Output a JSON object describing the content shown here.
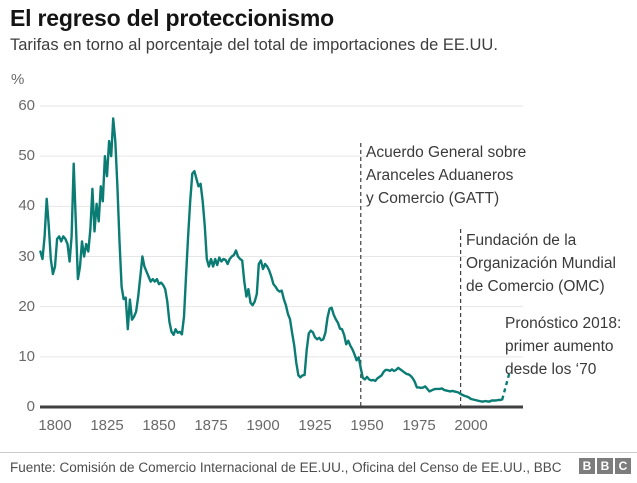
{
  "header": {
    "title": "El regreso del proteccionismo",
    "subtitle": "Tarifas en torno al porcentaje del total de importaciones de EE.UU."
  },
  "chart_data": {
    "type": "line",
    "title": "El regreso del proteccionismo",
    "subtitle": "Tarifas en torno al porcentaje del total de importaciones de EE.UU.",
    "unit_label": "%",
    "ylabel": "%",
    "xlabel": "",
    "ylim": [
      0,
      60
    ],
    "xlim": [
      1790,
      2022
    ],
    "grid": true,
    "legend": "none",
    "y_ticks": [
      0,
      10,
      20,
      30,
      40,
      50,
      60
    ],
    "x_ticks": [
      1800,
      1825,
      1850,
      1875,
      1900,
      1925,
      1950,
      1975,
      2000
    ],
    "colors": {
      "line": "#0b7c74",
      "grid": "#e6e6e6",
      "axis": "#404040",
      "annotation_line": "#404040"
    },
    "series": [
      {
        "name": "Tarifas como % del total de importaciones de EE.UU.",
        "points": [
          [
            1793,
            31
          ],
          [
            1794,
            29.5
          ],
          [
            1795,
            34
          ],
          [
            1796,
            41.5
          ],
          [
            1797,
            36
          ],
          [
            1798,
            29.5
          ],
          [
            1799,
            26.5
          ],
          [
            1800,
            28
          ],
          [
            1801,
            33.5
          ],
          [
            1802,
            34
          ],
          [
            1803,
            33
          ],
          [
            1804,
            34
          ],
          [
            1805,
            33.5
          ],
          [
            1806,
            32.5
          ],
          [
            1807,
            29
          ],
          [
            1808,
            34
          ],
          [
            1809,
            48.5
          ],
          [
            1810,
            37
          ],
          [
            1811,
            25.5
          ],
          [
            1812,
            28
          ],
          [
            1813,
            33
          ],
          [
            1814,
            30
          ],
          [
            1815,
            32.5
          ],
          [
            1816,
            31
          ],
          [
            1817,
            35.5
          ],
          [
            1818,
            43.5
          ],
          [
            1819,
            35
          ],
          [
            1820,
            40.5
          ],
          [
            1821,
            37
          ],
          [
            1822,
            44
          ],
          [
            1823,
            41
          ],
          [
            1824,
            50
          ],
          [
            1825,
            46
          ],
          [
            1826,
            53
          ],
          [
            1827,
            50
          ],
          [
            1828,
            57.5
          ],
          [
            1829,
            53
          ],
          [
            1830,
            44
          ],
          [
            1831,
            33
          ],
          [
            1832,
            24
          ],
          [
            1833,
            21.5
          ],
          [
            1834,
            21.8
          ],
          [
            1835,
            15.5
          ],
          [
            1836,
            21.4
          ],
          [
            1837,
            17.4
          ],
          [
            1838,
            18
          ],
          [
            1839,
            19
          ],
          [
            1840,
            22
          ],
          [
            1841,
            26
          ],
          [
            1842,
            30
          ],
          [
            1843,
            28
          ],
          [
            1844,
            27
          ],
          [
            1845,
            26
          ],
          [
            1846,
            25
          ],
          [
            1847,
            25.5
          ],
          [
            1848,
            25
          ],
          [
            1849,
            25.5
          ],
          [
            1850,
            24.5
          ],
          [
            1851,
            24.8
          ],
          [
            1852,
            24.3
          ],
          [
            1853,
            23.5
          ],
          [
            1854,
            21
          ],
          [
            1855,
            17
          ],
          [
            1856,
            15
          ],
          [
            1857,
            14.4
          ],
          [
            1858,
            15.5
          ],
          [
            1859,
            14.8
          ],
          [
            1860,
            15
          ],
          [
            1861,
            14.5
          ],
          [
            1862,
            18
          ],
          [
            1863,
            26
          ],
          [
            1864,
            34
          ],
          [
            1865,
            41
          ],
          [
            1866,
            46.5
          ],
          [
            1867,
            47
          ],
          [
            1868,
            45.5
          ],
          [
            1869,
            44
          ],
          [
            1870,
            44.5
          ],
          [
            1871,
            41
          ],
          [
            1872,
            36
          ],
          [
            1873,
            29.5
          ],
          [
            1874,
            28
          ],
          [
            1875,
            29.5
          ],
          [
            1876,
            28
          ],
          [
            1877,
            29.5
          ],
          [
            1878,
            28.3
          ],
          [
            1879,
            29.8
          ],
          [
            1880,
            29
          ],
          [
            1881,
            29.5
          ],
          [
            1882,
            29.3
          ],
          [
            1883,
            28.5
          ],
          [
            1884,
            29.5
          ],
          [
            1885,
            30
          ],
          [
            1886,
            30.3
          ],
          [
            1887,
            31.2
          ],
          [
            1888,
            30
          ],
          [
            1889,
            29.5
          ],
          [
            1890,
            29.2
          ],
          [
            1891,
            25
          ],
          [
            1892,
            22
          ],
          [
            1893,
            23.5
          ],
          [
            1894,
            20.8
          ],
          [
            1895,
            20.3
          ],
          [
            1896,
            21
          ],
          [
            1897,
            22.5
          ],
          [
            1898,
            28.5
          ],
          [
            1899,
            29.2
          ],
          [
            1900,
            27.5
          ],
          [
            1901,
            28.5
          ],
          [
            1902,
            28
          ],
          [
            1903,
            27.2
          ],
          [
            1904,
            26
          ],
          [
            1905,
            24.5
          ],
          [
            1906,
            24
          ],
          [
            1907,
            23.3
          ],
          [
            1908,
            23
          ],
          [
            1909,
            23.2
          ],
          [
            1910,
            21.5
          ],
          [
            1911,
            20.3
          ],
          [
            1912,
            18.5
          ],
          [
            1913,
            17.5
          ],
          [
            1914,
            14.8
          ],
          [
            1915,
            12.3
          ],
          [
            1916,
            8.8
          ],
          [
            1917,
            6.3
          ],
          [
            1918,
            5.9
          ],
          [
            1919,
            6.3
          ],
          [
            1920,
            6.4
          ],
          [
            1921,
            11.4
          ],
          [
            1922,
            14.7
          ],
          [
            1923,
            15.2
          ],
          [
            1924,
            14.9
          ],
          [
            1925,
            13.9
          ],
          [
            1926,
            13.5
          ],
          [
            1927,
            13.8
          ],
          [
            1928,
            13.3
          ],
          [
            1929,
            13.5
          ],
          [
            1930,
            14.8
          ],
          [
            1931,
            17.8
          ],
          [
            1932,
            19.6
          ],
          [
            1933,
            19.8
          ],
          [
            1934,
            18.4
          ],
          [
            1935,
            17.5
          ],
          [
            1936,
            16.8
          ],
          [
            1937,
            15.6
          ],
          [
            1938,
            15.5
          ],
          [
            1939,
            14.4
          ],
          [
            1940,
            12.5
          ],
          [
            1941,
            13.2
          ],
          [
            1942,
            12.2
          ],
          [
            1943,
            11.5
          ],
          [
            1944,
            10.5
          ],
          [
            1945,
            9.3
          ],
          [
            1946,
            9.9
          ],
          [
            1947,
            7.7
          ],
          [
            1948,
            5.8
          ],
          [
            1949,
            5.5
          ],
          [
            1950,
            6
          ],
          [
            1951,
            5.5
          ],
          [
            1952,
            5.3
          ],
          [
            1953,
            5.4
          ],
          [
            1954,
            5.2
          ],
          [
            1955,
            5.7
          ],
          [
            1956,
            6
          ],
          [
            1957,
            6.3
          ],
          [
            1958,
            7
          ],
          [
            1959,
            7.4
          ],
          [
            1960,
            7.4
          ],
          [
            1961,
            7.2
          ],
          [
            1962,
            7.5
          ],
          [
            1963,
            7.2
          ],
          [
            1964,
            7.4
          ],
          [
            1965,
            7.8
          ],
          [
            1966,
            7.5
          ],
          [
            1967,
            7.2
          ],
          [
            1968,
            6.9
          ],
          [
            1969,
            6.6
          ],
          [
            1970,
            6.5
          ],
          [
            1971,
            6.2
          ],
          [
            1972,
            5.7
          ],
          [
            1973,
            5
          ],
          [
            1974,
            3.9
          ],
          [
            1975,
            3.9
          ],
          [
            1976,
            3.8
          ],
          [
            1977,
            3.9
          ],
          [
            1978,
            4.1
          ],
          [
            1979,
            3.6
          ],
          [
            1980,
            3.1
          ],
          [
            1981,
            3.3
          ],
          [
            1982,
            3.5
          ],
          [
            1983,
            3.6
          ],
          [
            1984,
            3.6
          ],
          [
            1985,
            3.6
          ],
          [
            1986,
            3.7
          ],
          [
            1987,
            3.4
          ],
          [
            1988,
            3.3
          ],
          [
            1989,
            3.2
          ],
          [
            1990,
            3.1
          ],
          [
            1991,
            3.2
          ],
          [
            1992,
            3.1
          ],
          [
            1993,
            3
          ],
          [
            1994,
            2.9
          ],
          [
            1995,
            2.6
          ],
          [
            1996,
            2.4
          ],
          [
            1997,
            2.2
          ],
          [
            1998,
            2.1
          ],
          [
            1999,
            1.9
          ],
          [
            2000,
            1.6
          ],
          [
            2001,
            1.5
          ],
          [
            2002,
            1.4
          ],
          [
            2003,
            1.3
          ],
          [
            2004,
            1.2
          ],
          [
            2005,
            1.1
          ],
          [
            2006,
            1.1
          ],
          [
            2007,
            1.2
          ],
          [
            2008,
            1.1
          ],
          [
            2009,
            1.1
          ],
          [
            2010,
            1.3
          ],
          [
            2011,
            1.3
          ],
          [
            2012,
            1.3
          ],
          [
            2013,
            1.4
          ],
          [
            2014,
            1.4
          ],
          [
            2015,
            1.5
          ]
        ]
      }
    ],
    "forecast": {
      "style": "dashed",
      "points": [
        [
          2015,
          1.5
        ],
        [
          2018.8,
          7.3
        ]
      ]
    },
    "annotations": [
      {
        "id": "gatt",
        "year": 1947,
        "lines": [
          "Acuerdo General sobre",
          "Aranceles Aduaneros",
          "y Comercio (GATT)"
        ]
      },
      {
        "id": "omc",
        "year": 1995,
        "lines": [
          "Fundación de la",
          "Organización Mundial",
          "de Comercio (OMC)"
        ]
      },
      {
        "id": "forecast",
        "year": null,
        "lines": [
          "Pronóstico 2018:",
          "primer aumento",
          "desde los ‘70"
        ]
      }
    ]
  },
  "footer": {
    "source": "Fuente: Comisión de Comercio Internacional de EE.UU., Oficina del Censo de EE.UU., BBC",
    "logo": [
      "B",
      "B",
      "C"
    ]
  }
}
